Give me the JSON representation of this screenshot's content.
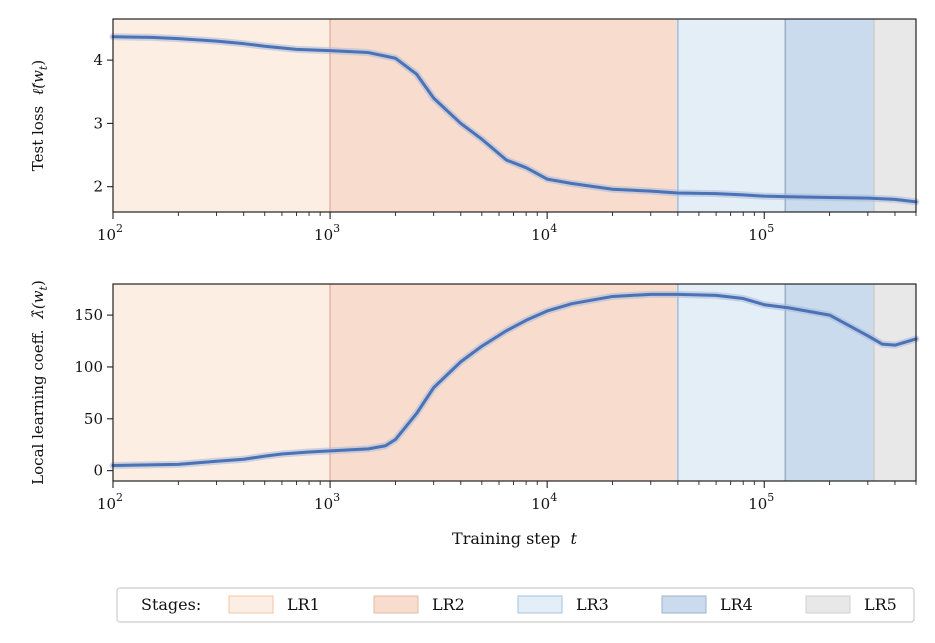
{
  "chart_data": [
    {
      "type": "line",
      "ylabel": "Test loss $\\hat{\\ell}(w_t)$",
      "ylabel_text": "Test loss",
      "ylabel_math": "ℓ̂(w",
      "ylabel_sub": "t",
      "ylabel_close": ")",
      "xscale": "log",
      "xlim": [
        100,
        500000
      ],
      "ylim": [
        1.6,
        4.65
      ],
      "yticks": [
        2,
        3,
        4
      ],
      "ytick_labels": [
        "2",
        "3",
        "4"
      ],
      "series": [
        {
          "color": "#4a72b6",
          "x": [
            100,
            150,
            200,
            300,
            400,
            500,
            700,
            1000,
            1500,
            2000,
            2500,
            3000,
            4000,
            5000,
            6500,
            8000,
            10000,
            13000,
            20000,
            30000,
            40000,
            60000,
            80000,
            100000,
            130000,
            200000,
            300000,
            400000,
            500000
          ],
          "y": [
            4.37,
            4.36,
            4.34,
            4.3,
            4.26,
            4.22,
            4.17,
            4.15,
            4.12,
            4.03,
            3.78,
            3.4,
            3.0,
            2.75,
            2.42,
            2.3,
            2.12,
            2.05,
            1.96,
            1.93,
            1.9,
            1.89,
            1.87,
            1.85,
            1.84,
            1.83,
            1.82,
            1.8,
            1.76
          ]
        }
      ]
    },
    {
      "type": "line",
      "ylabel": "Local learning coeff. $\\hat{\\lambda}(w_t)$",
      "ylabel_text": "Local learning coeff.",
      "ylabel_math": "λ̂(w",
      "ylabel_sub": "t",
      "ylabel_close": ")",
      "xlabel": "Training step $t$",
      "xlabel_text": "Training step",
      "xlabel_math": "t",
      "xscale": "log",
      "xlim": [
        100,
        500000
      ],
      "ylim": [
        -10,
        180
      ],
      "yticks": [
        0,
        50,
        100,
        150
      ],
      "ytick_labels": [
        "0",
        "50",
        "100",
        "150"
      ],
      "series": [
        {
          "color": "#4a72b6",
          "x": [
            100,
            200,
            300,
            400,
            500,
            600,
            800,
            1000,
            1500,
            1800,
            2000,
            2500,
            3000,
            4000,
            5000,
            6500,
            8000,
            10000,
            13000,
            20000,
            30000,
            40000,
            60000,
            80000,
            100000,
            130000,
            200000,
            300000,
            350000,
            400000,
            500000
          ],
          "y": [
            5,
            6,
            9,
            11,
            14,
            16,
            18,
            19,
            21,
            24,
            30,
            55,
            80,
            105,
            120,
            135,
            145,
            154,
            161,
            168,
            170,
            170,
            169,
            166,
            160,
            157,
            150,
            130,
            122,
            121,
            127
          ]
        }
      ]
    }
  ],
  "xticks": [
    100,
    1000,
    10000,
    100000
  ],
  "xtick_base": [
    "10",
    "10",
    "10",
    "10"
  ],
  "xtick_exp": [
    "2",
    "3",
    "4",
    "5"
  ],
  "stages": [
    {
      "label": "LR1",
      "start": 100,
      "end": 1000,
      "fill": "#fdeee3",
      "line": "#f2c4a6"
    },
    {
      "label": "LR2",
      "start": 1000,
      "end": 40000,
      "fill": "#f8ddce",
      "line": "#e3b9a8"
    },
    {
      "label": "LR3",
      "start": 40000,
      "end": 125000,
      "fill": "#e4eef7",
      "line": "#9fc3e3"
    },
    {
      "label": "LR4",
      "start": 125000,
      "end": 320000,
      "fill": "#cbdbee",
      "line": "#9ab3cc"
    },
    {
      "label": "LR5",
      "start": 320000,
      "end": 500000,
      "fill": "#e8e8e8",
      "line": "#cfcfcf"
    }
  ],
  "legend": {
    "title": "Stages:",
    "items": [
      "LR1",
      "LR2",
      "LR3",
      "LR4",
      "LR5"
    ]
  }
}
